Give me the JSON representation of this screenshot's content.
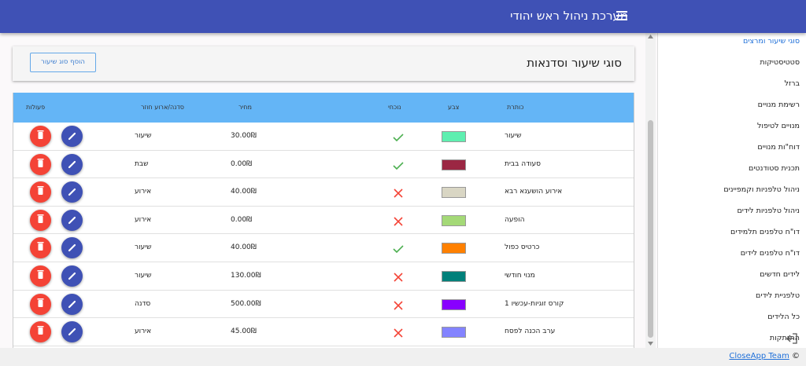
{
  "header": {
    "title": "מערכת ניהול ראש יהודי"
  },
  "page": {
    "title": "סוגי שיעור וסדנאות",
    "add_button": "הוסף סוג שיעור"
  },
  "table": {
    "columns": [
      "כותרת",
      "צבע",
      "נוכחי",
      "מחיר",
      "סדנה/ארוע חוזר",
      "פעולות"
    ],
    "rows": [
      {
        "title": "שיעור",
        "color": "#5eefb0",
        "present": true,
        "price": "30.00₪",
        "kind": "שיעור"
      },
      {
        "title": "סעודה בבית",
        "color": "#9b2743",
        "present": true,
        "price": "0.00₪",
        "kind": "שבת"
      },
      {
        "title": "אירוע הושענא רבא",
        "color": "#d9d6c4",
        "present": false,
        "price": "40.00₪",
        "kind": "אירוע"
      },
      {
        "title": "הופעה",
        "color": "#a4d977",
        "present": false,
        "price": "0.00₪",
        "kind": "אירוע"
      },
      {
        "title": "כרטיס כפול",
        "color": "#ff8000",
        "present": true,
        "price": "40.00₪",
        "kind": "שיעור"
      },
      {
        "title": "מנוי חודשי",
        "color": "#00807a",
        "present": false,
        "price": "130.00₪",
        "kind": "שיעור"
      },
      {
        "title": "קורס זוגיות-עכשיו 1",
        "color": "#8800ff",
        "present": false,
        "price": "500.00₪",
        "kind": "סדנה"
      },
      {
        "title": "ערב הכנה לפסח",
        "color": "#8383ff",
        "present": false,
        "price": "45.00₪",
        "kind": "אירוע"
      }
    ]
  },
  "sidebar": {
    "items": [
      "סוגי שיעור ומרצים",
      "סטטיסטיקות",
      "ברזל",
      "רשימת מנויים",
      "מנויים לטיפול",
      "דוח\"ות מנויים",
      "תכנית סטודנטים",
      "ניהול טלפניות וקמפיינים",
      "ניהול טלפניות לידים",
      "דו\"ח טלפנים תלמידים",
      "דו\"ח טלפנים לידים",
      "לידים חדשים",
      "טלפניית לידים",
      "כל הלידים",
      "התנתקות"
    ],
    "active": 0
  },
  "footer": {
    "link": "CloseApp Team",
    "symbol": "©"
  }
}
